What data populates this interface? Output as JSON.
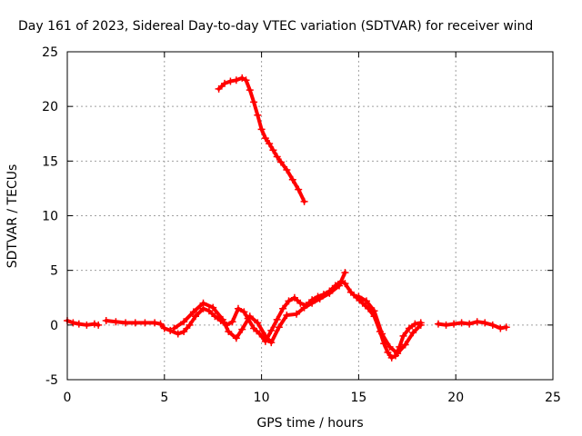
{
  "chart_data": {
    "type": "scatter",
    "title": "Day 161 of 2023, Sidereal Day-to-day VTEC variation (SDTVAR) for receiver wind",
    "xlabel": "GPS time / hours",
    "ylabel": "SDTVAR / TECUs",
    "xlim": [
      0,
      25
    ],
    "ylim": [
      -5,
      25
    ],
    "xticks": [
      "0",
      "5",
      "10",
      "15",
      "20",
      "25"
    ],
    "yticks": [
      "-5",
      "0",
      "5",
      "10",
      "15",
      "20",
      "25"
    ],
    "grid": true,
    "marker": "+",
    "color": "#ff0000",
    "series": [
      {
        "name": "seg1",
        "x": [
          0.0,
          0.3,
          0.6,
          1.0,
          1.4,
          1.6
        ],
        "y": [
          0.4,
          0.2,
          0.1,
          0.0,
          0.1,
          0.0
        ]
      },
      {
        "name": "seg2",
        "x": [
          2.0,
          2.5,
          3.0,
          3.5,
          4.0,
          4.5,
          4.8,
          5.0,
          5.3,
          5.7,
          6.0,
          6.3,
          6.6,
          7.0,
          7.3,
          7.6,
          7.9,
          8.2,
          8.5,
          8.8,
          9.1,
          9.3,
          9.6,
          9.9,
          10.2,
          10.5,
          10.8,
          11.1,
          11.4,
          11.7,
          12.0,
          12.3,
          12.6,
          12.9,
          13.2,
          13.5,
          13.8,
          14.1,
          14.3,
          14.6,
          14.9,
          15.2,
          15.5,
          15.8,
          16.1,
          16.3,
          16.5,
          16.7,
          16.9,
          17.1,
          17.3,
          17.6,
          17.9,
          18.2
        ],
        "y": [
          0.4,
          0.3,
          0.2,
          0.2,
          0.2,
          0.2,
          0.1,
          -0.3,
          -0.5,
          -0.8,
          -0.6,
          0.0,
          0.8,
          1.5,
          1.3,
          0.8,
          0.4,
          0.0,
          0.3,
          1.5,
          1.2,
          0.6,
          -0.3,
          -0.8,
          -1.5,
          -0.5,
          0.5,
          1.5,
          2.2,
          2.5,
          2.0,
          1.8,
          2.3,
          2.6,
          2.8,
          3.1,
          3.6,
          4.0,
          3.8,
          3.0,
          2.5,
          2.0,
          1.5,
          0.8,
          -0.6,
          -1.7,
          -2.5,
          -3.0,
          -2.8,
          -2.0,
          -1.0,
          -0.3,
          0.1,
          0.2
        ]
      },
      {
        "name": "seg2b",
        "x": [
          5.5,
          6.0,
          6.5,
          7.0,
          7.5,
          8.0,
          8.3,
          8.7,
          9.0,
          9.4,
          9.8,
          10.2,
          10.5,
          10.9,
          11.3,
          11.8,
          12.2,
          12.6,
          13.0,
          13.5,
          14.0,
          14.3
        ],
        "y": [
          -0.3,
          0.3,
          1.2,
          2.0,
          1.6,
          0.5,
          -0.6,
          -1.2,
          -0.4,
          0.8,
          0.2,
          -1.0,
          -1.6,
          -0.2,
          0.9,
          1.0,
          1.6,
          2.0,
          2.4,
          2.9,
          3.6,
          4.8
        ]
      },
      {
        "name": "seg2c",
        "x": [
          15.0,
          15.4,
          15.8,
          16.2,
          16.6,
          17.0,
          17.4,
          17.8,
          18.2
        ],
        "y": [
          2.6,
          2.2,
          1.3,
          -0.8,
          -2.0,
          -2.6,
          -1.8,
          -0.7,
          0.0
        ]
      },
      {
        "name": "seg3",
        "x": [
          19.1,
          19.5,
          19.9,
          20.3,
          20.7,
          21.1,
          21.5,
          21.9,
          22.3,
          22.6
        ],
        "y": [
          0.1,
          0.0,
          0.1,
          0.2,
          0.1,
          0.3,
          0.2,
          0.0,
          -0.3,
          -0.2
        ]
      },
      {
        "name": "seg4",
        "x": [
          7.8,
          8.1,
          8.4,
          8.7,
          9.0,
          9.2,
          9.4,
          9.6,
          9.8,
          10.0,
          10.2,
          10.4,
          10.6,
          10.8,
          11.0,
          11.3,
          11.6,
          11.9,
          12.2
        ],
        "y": [
          21.6,
          22.1,
          22.3,
          22.4,
          22.6,
          22.4,
          21.5,
          20.4,
          19.2,
          17.9,
          17.1,
          16.6,
          16.0,
          15.4,
          14.9,
          14.2,
          13.3,
          12.4,
          11.3
        ]
      }
    ]
  }
}
